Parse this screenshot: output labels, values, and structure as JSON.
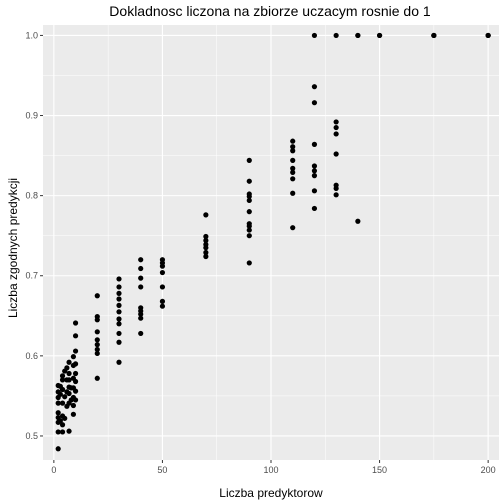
{
  "chart_data": {
    "type": "scatter",
    "title": "Dokladnosc liczona na zbiorze uczacym rosnie do 1",
    "xlabel": "Liczba predyktorow",
    "ylabel": "Liczba zgodnych predykcji",
    "xlim": [
      -5,
      205
    ],
    "ylim": [
      0.47,
      1.013
    ],
    "xticks": [
      0,
      50,
      100,
      150,
      200
    ],
    "xtick_labels": [
      "0",
      "50",
      "100",
      "150",
      "200"
    ],
    "yticks": [
      0.5,
      0.6,
      0.7,
      0.8,
      0.9,
      1.0
    ],
    "ytick_labels": [
      "0.5",
      "0.6",
      "0.7",
      "0.8",
      "0.9",
      "1.0"
    ],
    "grid": true,
    "colors": {
      "panel": "#ebebeb",
      "grid_major": "#ffffff",
      "point": "#000000"
    },
    "series": [
      {
        "points": [
          [
            2,
            0.484
          ],
          [
            2,
            0.505
          ],
          [
            2,
            0.517
          ],
          [
            2,
            0.523
          ],
          [
            2,
            0.529
          ],
          [
            2,
            0.541
          ],
          [
            2,
            0.548
          ],
          [
            2,
            0.555
          ],
          [
            2,
            0.563
          ],
          [
            3,
            0.519
          ],
          [
            3,
            0.552
          ],
          [
            3,
            0.562
          ],
          [
            4,
            0.505
          ],
          [
            4,
            0.514
          ],
          [
            4,
            0.525
          ],
          [
            4,
            0.541
          ],
          [
            4,
            0.558
          ],
          [
            4,
            0.57
          ],
          [
            4,
            0.575
          ],
          [
            5,
            0.522
          ],
          [
            5,
            0.549
          ],
          [
            5,
            0.581
          ],
          [
            6,
            0.537
          ],
          [
            6,
            0.555
          ],
          [
            6,
            0.57
          ],
          [
            6,
            0.585
          ],
          [
            7,
            0.506
          ],
          [
            7,
            0.541
          ],
          [
            7,
            0.553
          ],
          [
            7,
            0.561
          ],
          [
            7,
            0.57
          ],
          [
            7,
            0.578
          ],
          [
            7,
            0.592
          ],
          [
            8,
            0.545
          ],
          [
            8,
            0.56
          ],
          [
            9,
            0.527
          ],
          [
            9,
            0.538
          ],
          [
            9,
            0.548
          ],
          [
            9,
            0.56
          ],
          [
            9,
            0.572
          ],
          [
            9,
            0.588
          ],
          [
            9,
            0.599
          ],
          [
            10,
            0.545
          ],
          [
            10,
            0.556
          ],
          [
            10,
            0.568
          ],
          [
            10,
            0.578
          ],
          [
            10,
            0.59
          ],
          [
            10,
            0.606
          ],
          [
            10,
            0.625
          ],
          [
            10,
            0.641
          ],
          [
            20,
            0.572
          ],
          [
            20,
            0.603
          ],
          [
            20,
            0.608
          ],
          [
            20,
            0.614
          ],
          [
            20,
            0.62
          ],
          [
            20,
            0.63
          ],
          [
            20,
            0.645
          ],
          [
            20,
            0.649
          ],
          [
            20,
            0.675
          ],
          [
            30,
            0.592
          ],
          [
            30,
            0.617
          ],
          [
            30,
            0.628
          ],
          [
            30,
            0.64
          ],
          [
            30,
            0.646
          ],
          [
            30,
            0.655
          ],
          [
            30,
            0.663
          ],
          [
            30,
            0.671
          ],
          [
            30,
            0.678
          ],
          [
            30,
            0.686
          ],
          [
            30,
            0.696
          ],
          [
            40,
            0.628
          ],
          [
            40,
            0.647
          ],
          [
            40,
            0.652
          ],
          [
            40,
            0.656
          ],
          [
            40,
            0.66
          ],
          [
            40,
            0.686
          ],
          [
            40,
            0.697
          ],
          [
            40,
            0.709
          ],
          [
            40,
            0.72
          ],
          [
            50,
            0.662
          ],
          [
            50,
            0.668
          ],
          [
            50,
            0.686
          ],
          [
            50,
            0.704
          ],
          [
            50,
            0.712
          ],
          [
            50,
            0.716
          ],
          [
            50,
            0.72
          ],
          [
            70,
            0.724
          ],
          [
            70,
            0.729
          ],
          [
            70,
            0.735
          ],
          [
            70,
            0.739
          ],
          [
            70,
            0.744
          ],
          [
            70,
            0.749
          ],
          [
            70,
            0.776
          ],
          [
            90,
            0.716
          ],
          [
            90,
            0.75
          ],
          [
            90,
            0.757
          ],
          [
            90,
            0.762
          ],
          [
            90,
            0.765
          ],
          [
            90,
            0.78
          ],
          [
            90,
            0.794
          ],
          [
            90,
            0.799
          ],
          [
            90,
            0.802
          ],
          [
            90,
            0.818
          ],
          [
            90,
            0.844
          ],
          [
            110,
            0.76
          ],
          [
            110,
            0.803
          ],
          [
            110,
            0.821
          ],
          [
            110,
            0.829
          ],
          [
            110,
            0.834
          ],
          [
            110,
            0.844
          ],
          [
            110,
            0.856
          ],
          [
            110,
            0.861
          ],
          [
            110,
            0.868
          ],
          [
            120,
            0.784
          ],
          [
            120,
            0.806
          ],
          [
            120,
            0.825
          ],
          [
            120,
            0.831
          ],
          [
            120,
            0.837
          ],
          [
            120,
            0.864
          ],
          [
            120,
            0.916
          ],
          [
            120,
            0.936
          ],
          [
            120,
            1.0
          ],
          [
            130,
            0.801
          ],
          [
            130,
            0.809
          ],
          [
            130,
            0.813
          ],
          [
            130,
            0.852
          ],
          [
            130,
            0.877
          ],
          [
            130,
            0.885
          ],
          [
            130,
            0.892
          ],
          [
            130,
            1.0
          ],
          [
            140,
            0.768
          ],
          [
            140,
            1.0
          ],
          [
            140,
            1.0
          ],
          [
            150,
            1.0
          ],
          [
            150,
            1.0
          ],
          [
            175,
            1.0
          ],
          [
            175,
            1.0
          ],
          [
            175,
            1.0
          ],
          [
            200,
            1.0
          ],
          [
            200,
            1.0
          ],
          [
            200,
            1.0
          ]
        ]
      }
    ]
  }
}
